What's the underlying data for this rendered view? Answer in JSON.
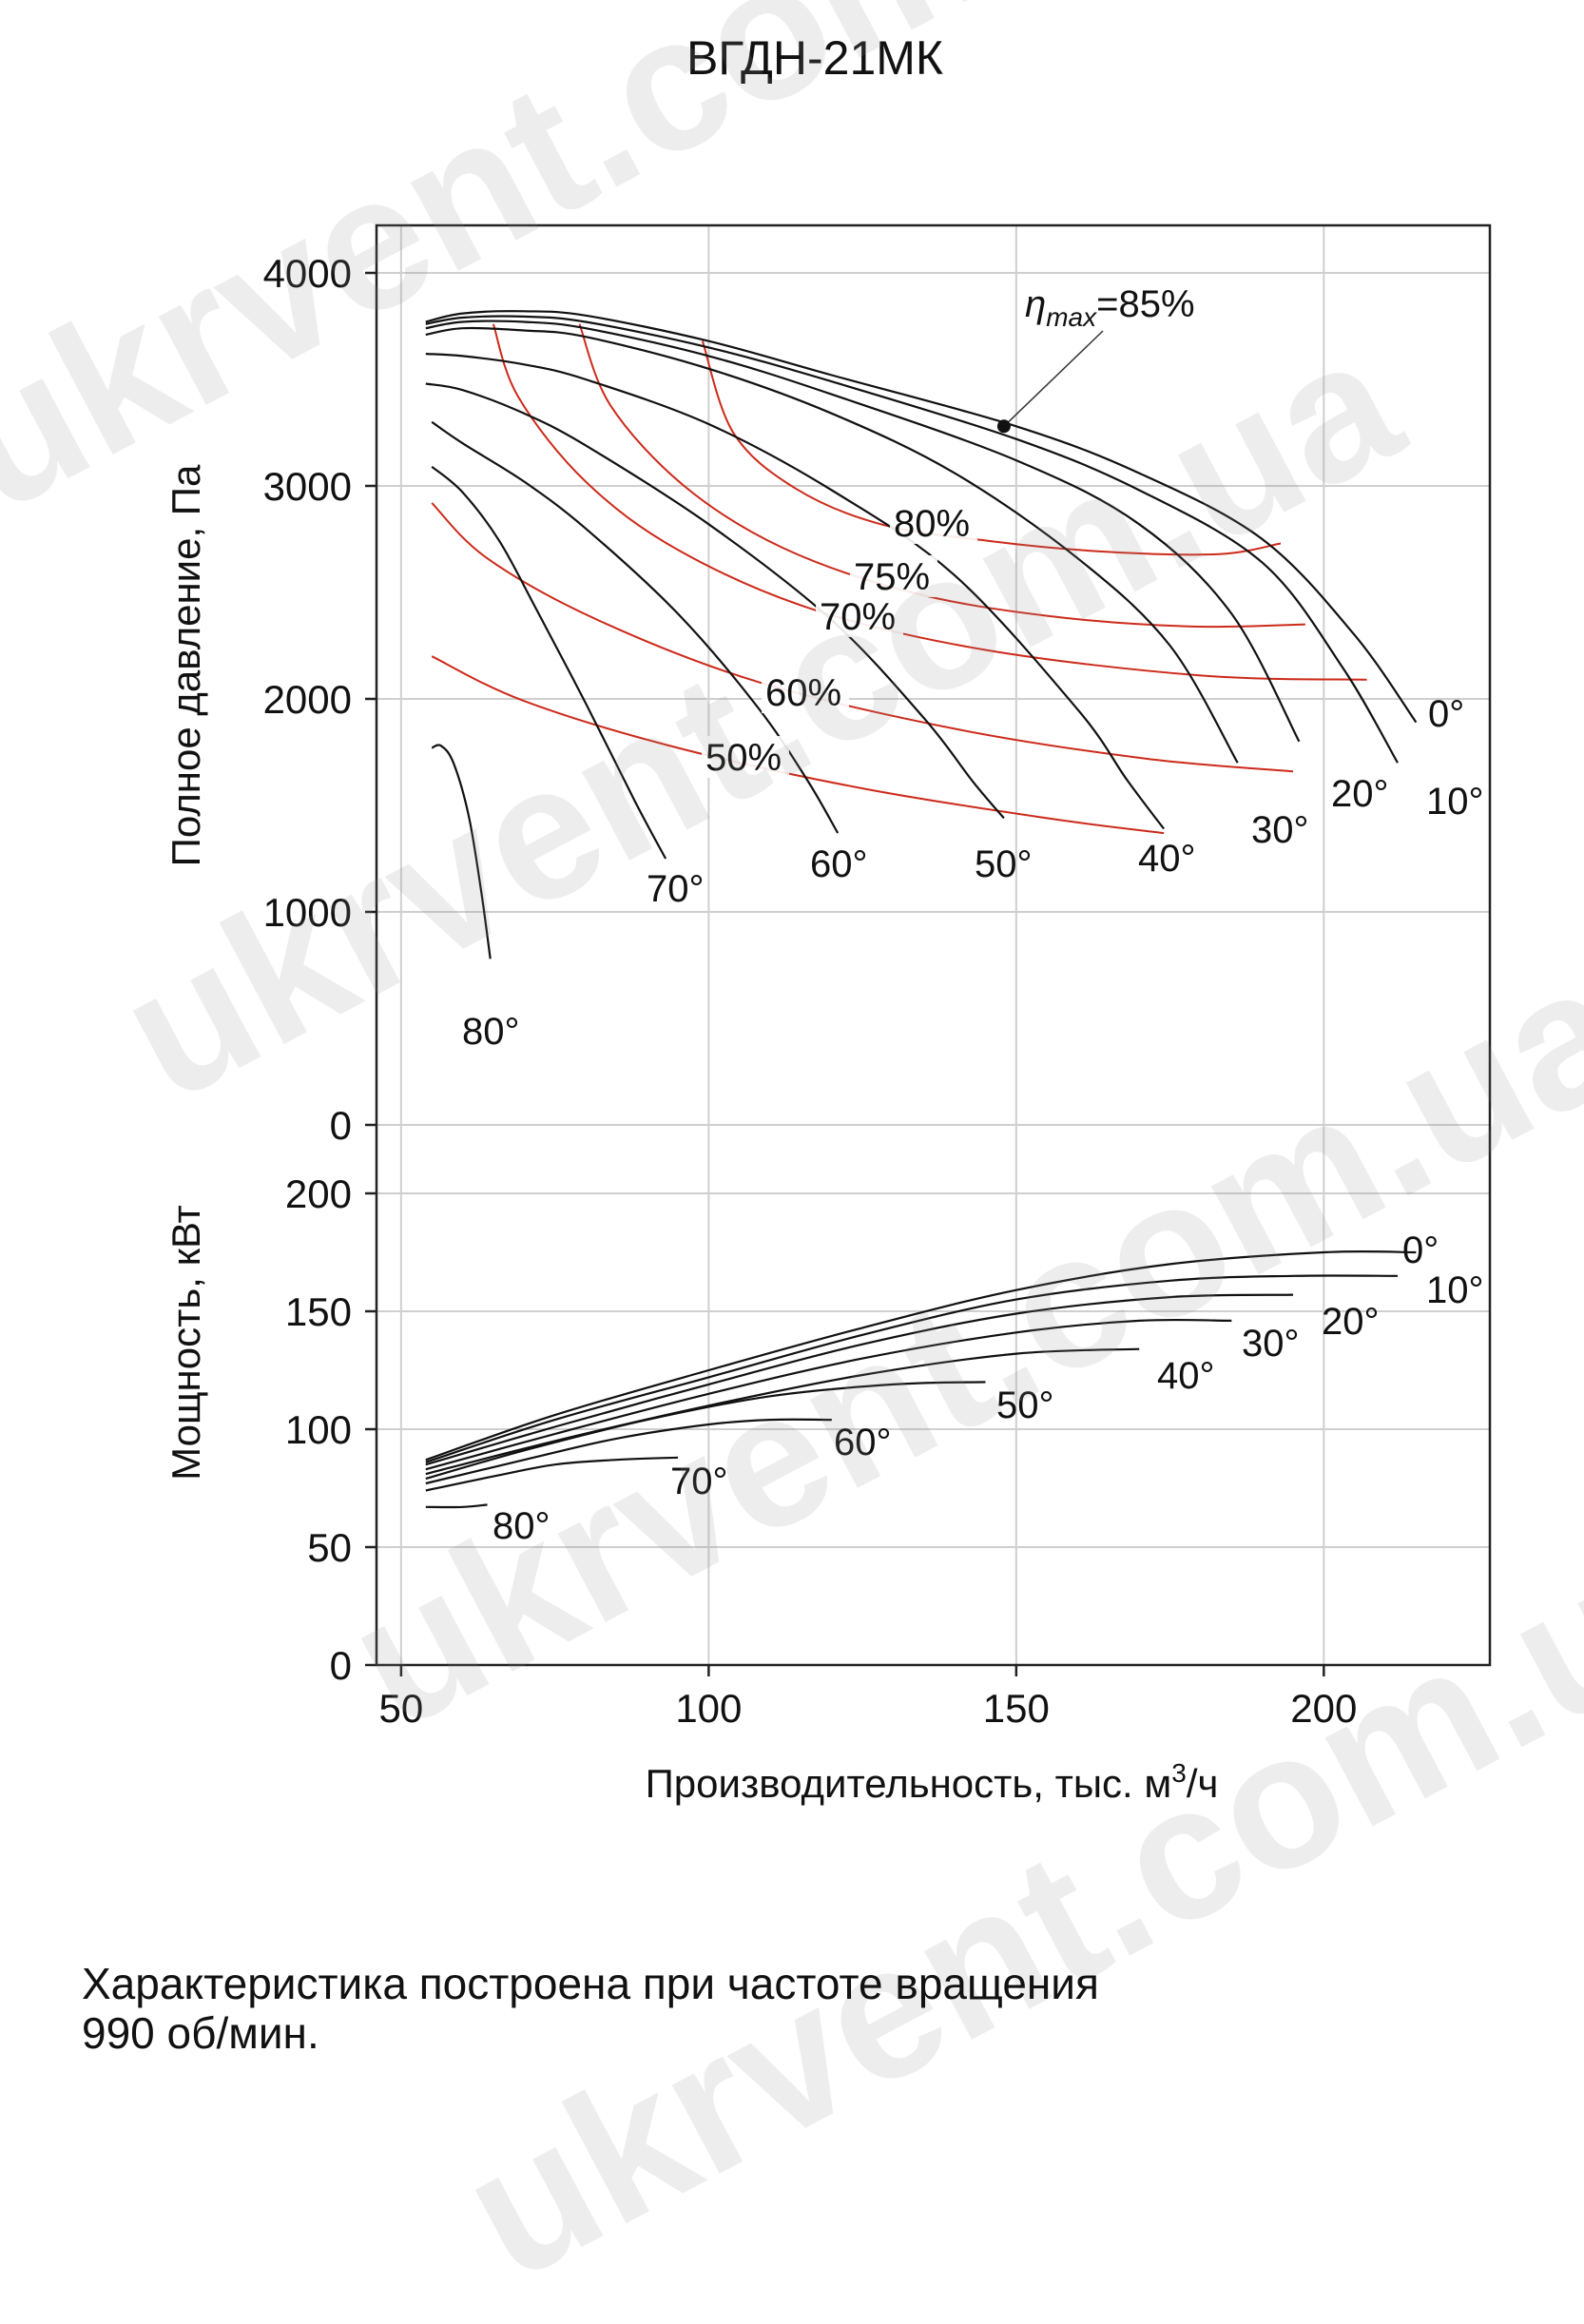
{
  "title": "ВГДН-21МК",
  "watermark_text": "ukrvent.com.ua",
  "note": {
    "line1": "Характеристика построена при частоте вращения",
    "line2": "990 об/мин."
  },
  "colors": {
    "curve": "#111111",
    "efficiency": "#cc2a1a",
    "grid": "#cfcfcf"
  },
  "chart_data": [
    {
      "type": "line",
      "name": "pressure",
      "ylabel": "Полное давление, Па",
      "xlim": [
        46,
        227
      ],
      "ylim": [
        0,
        4200
      ],
      "xticks": [
        50,
        100,
        150,
        200
      ],
      "yticks": [
        0,
        1000,
        2000,
        3000,
        4000
      ],
      "grid": true,
      "series": [
        {
          "name": "0°",
          "label": "0°",
          "x": [
            54,
            60,
            70,
            80,
            100,
            120,
            150,
            170,
            190,
            205,
            215
          ],
          "y": [
            3770,
            3810,
            3820,
            3800,
            3680,
            3520,
            3280,
            3060,
            2750,
            2300,
            1890
          ]
        },
        {
          "name": "10°",
          "label": "10°",
          "x": [
            54,
            60,
            70,
            80,
            100,
            120,
            150,
            170,
            190,
            203,
            212
          ],
          "y": [
            3760,
            3790,
            3795,
            3770,
            3650,
            3490,
            3220,
            2980,
            2640,
            2150,
            1700
          ]
        },
        {
          "name": "20°",
          "label": "20°",
          "x": [
            54,
            60,
            70,
            80,
            100,
            120,
            150,
            170,
            185,
            196
          ],
          "y": [
            3740,
            3770,
            3770,
            3740,
            3610,
            3430,
            3120,
            2820,
            2400,
            1800
          ]
        },
        {
          "name": "30°",
          "label": "30°",
          "x": [
            54,
            60,
            70,
            80,
            100,
            120,
            140,
            160,
            175,
            186
          ],
          "y": [
            3710,
            3740,
            3730,
            3700,
            3550,
            3340,
            3060,
            2660,
            2250,
            1700
          ]
        },
        {
          "name": "40°",
          "label": "40°",
          "x": [
            54,
            60,
            70,
            80,
            100,
            120,
            140,
            160,
            168,
            174
          ],
          "y": [
            3620,
            3610,
            3570,
            3500,
            3290,
            2980,
            2580,
            1950,
            1620,
            1390
          ]
        },
        {
          "name": "50°",
          "label": "50°",
          "x": [
            54,
            60,
            70,
            80,
            100,
            120,
            135,
            143,
            148
          ],
          "y": [
            3480,
            3450,
            3340,
            3190,
            2820,
            2370,
            1910,
            1610,
            1440
          ]
        },
        {
          "name": "60°",
          "label": "60°",
          "x": [
            55,
            60,
            70,
            80,
            95,
            108,
            116,
            121
          ],
          "y": [
            3300,
            3200,
            3020,
            2800,
            2400,
            1960,
            1620,
            1370
          ]
        },
        {
          "name": "70°",
          "label": "70°",
          "x": [
            55,
            60,
            66,
            72,
            80,
            88,
            93
          ],
          "y": [
            3090,
            2970,
            2740,
            2420,
            1980,
            1520,
            1250
          ]
        },
        {
          "name": "80°",
          "label": "80°",
          "x": [
            55,
            56.5,
            58.5,
            61,
            63,
            64.5
          ],
          "y": [
            1770,
            1780,
            1700,
            1450,
            1100,
            780
          ]
        }
      ],
      "efficiency_series": [
        {
          "name": "80%",
          "label": "80%",
          "x": [
            99,
            104,
            114,
            128,
            146,
            165,
            183,
            193
          ],
          "y": [
            3680,
            3250,
            2990,
            2820,
            2740,
            2690,
            2680,
            2730
          ]
        },
        {
          "name": "75%",
          "label": "75%",
          "x": [
            79,
            84,
            96,
            112,
            133,
            155,
            178,
            197
          ],
          "y": [
            3760,
            3380,
            3000,
            2710,
            2500,
            2390,
            2340,
            2350
          ]
        },
        {
          "name": "70%",
          "label": "70%",
          "x": [
            65,
            69,
            80,
            95,
            117,
            145,
            180,
            207
          ],
          "y": [
            3760,
            3420,
            3020,
            2700,
            2420,
            2230,
            2110,
            2090
          ]
        },
        {
          "name": "60%",
          "label": "60%",
          "x": [
            55,
            64,
            82,
            108,
            140,
            171,
            195
          ],
          "y": [
            2920,
            2660,
            2370,
            2080,
            1860,
            1720,
            1660
          ]
        },
        {
          "name": "50%",
          "label": "50%",
          "x": [
            55,
            70,
            95,
            125,
            155,
            174
          ],
          "y": [
            2200,
            1990,
            1770,
            1580,
            1440,
            1370
          ]
        }
      ],
      "annotation": {
        "label_eta": "η",
        "label_max": "max",
        "label_value": "=85%",
        "point": {
          "x": 148,
          "y": 3280
        }
      }
    },
    {
      "type": "line",
      "name": "power",
      "xlabel": "Производительность, тыс. м",
      "xlabel_sup": "3",
      "xlabel_tail": "/ч",
      "ylabel": "Мощность, кВт",
      "xlim": [
        46,
        227
      ],
      "ylim": [
        0,
        200
      ],
      "xticks": [
        50,
        100,
        150,
        200
      ],
      "yticks": [
        0,
        50,
        100,
        150,
        200
      ],
      "grid": true,
      "series": [
        {
          "name": "0°",
          "label": "0°",
          "x": [
            54,
            75,
            100,
            125,
            150,
            175,
            200,
            215
          ],
          "y": [
            87,
            106,
            125,
            143,
            159,
            170,
            175,
            175
          ]
        },
        {
          "name": "10°",
          "label": "10°",
          "x": [
            54,
            75,
            100,
            125,
            150,
            175,
            195,
            212
          ],
          "y": [
            86,
            104,
            122,
            140,
            155,
            163,
            165,
            165
          ]
        },
        {
          "name": "20°",
          "label": "20°",
          "x": [
            54,
            75,
            100,
            125,
            150,
            175,
            195
          ],
          "y": [
            85,
            101,
            119,
            136,
            149,
            156,
            157
          ]
        },
        {
          "name": "30°",
          "label": "30°",
          "x": [
            54,
            75,
            100,
            125,
            150,
            170,
            185
          ],
          "y": [
            83,
            98,
            115,
            130,
            141,
            146,
            146
          ]
        },
        {
          "name": "40°",
          "label": "40°",
          "x": [
            54,
            75,
            100,
            125,
            150,
            170
          ],
          "y": [
            81,
            95,
            110,
            123,
            132,
            134
          ]
        },
        {
          "name": "50°",
          "label": "50°",
          "x": [
            54,
            70,
            90,
            110,
            130,
            145
          ],
          "y": [
            79,
            91,
            104,
            114,
            119,
            120
          ]
        },
        {
          "name": "60°",
          "label": "60°",
          "x": [
            54,
            70,
            85,
            100,
            110,
            120
          ],
          "y": [
            77,
            87,
            96,
            102,
            104,
            104
          ]
        },
        {
          "name": "70°",
          "label": "70°",
          "x": [
            54,
            65,
            75,
            85,
            95
          ],
          "y": [
            74,
            80,
            85,
            87,
            88
          ]
        },
        {
          "name": "80°",
          "label": "80°",
          "x": [
            54,
            60,
            64
          ],
          "y": [
            67,
            67,
            68
          ]
        }
      ]
    }
  ]
}
